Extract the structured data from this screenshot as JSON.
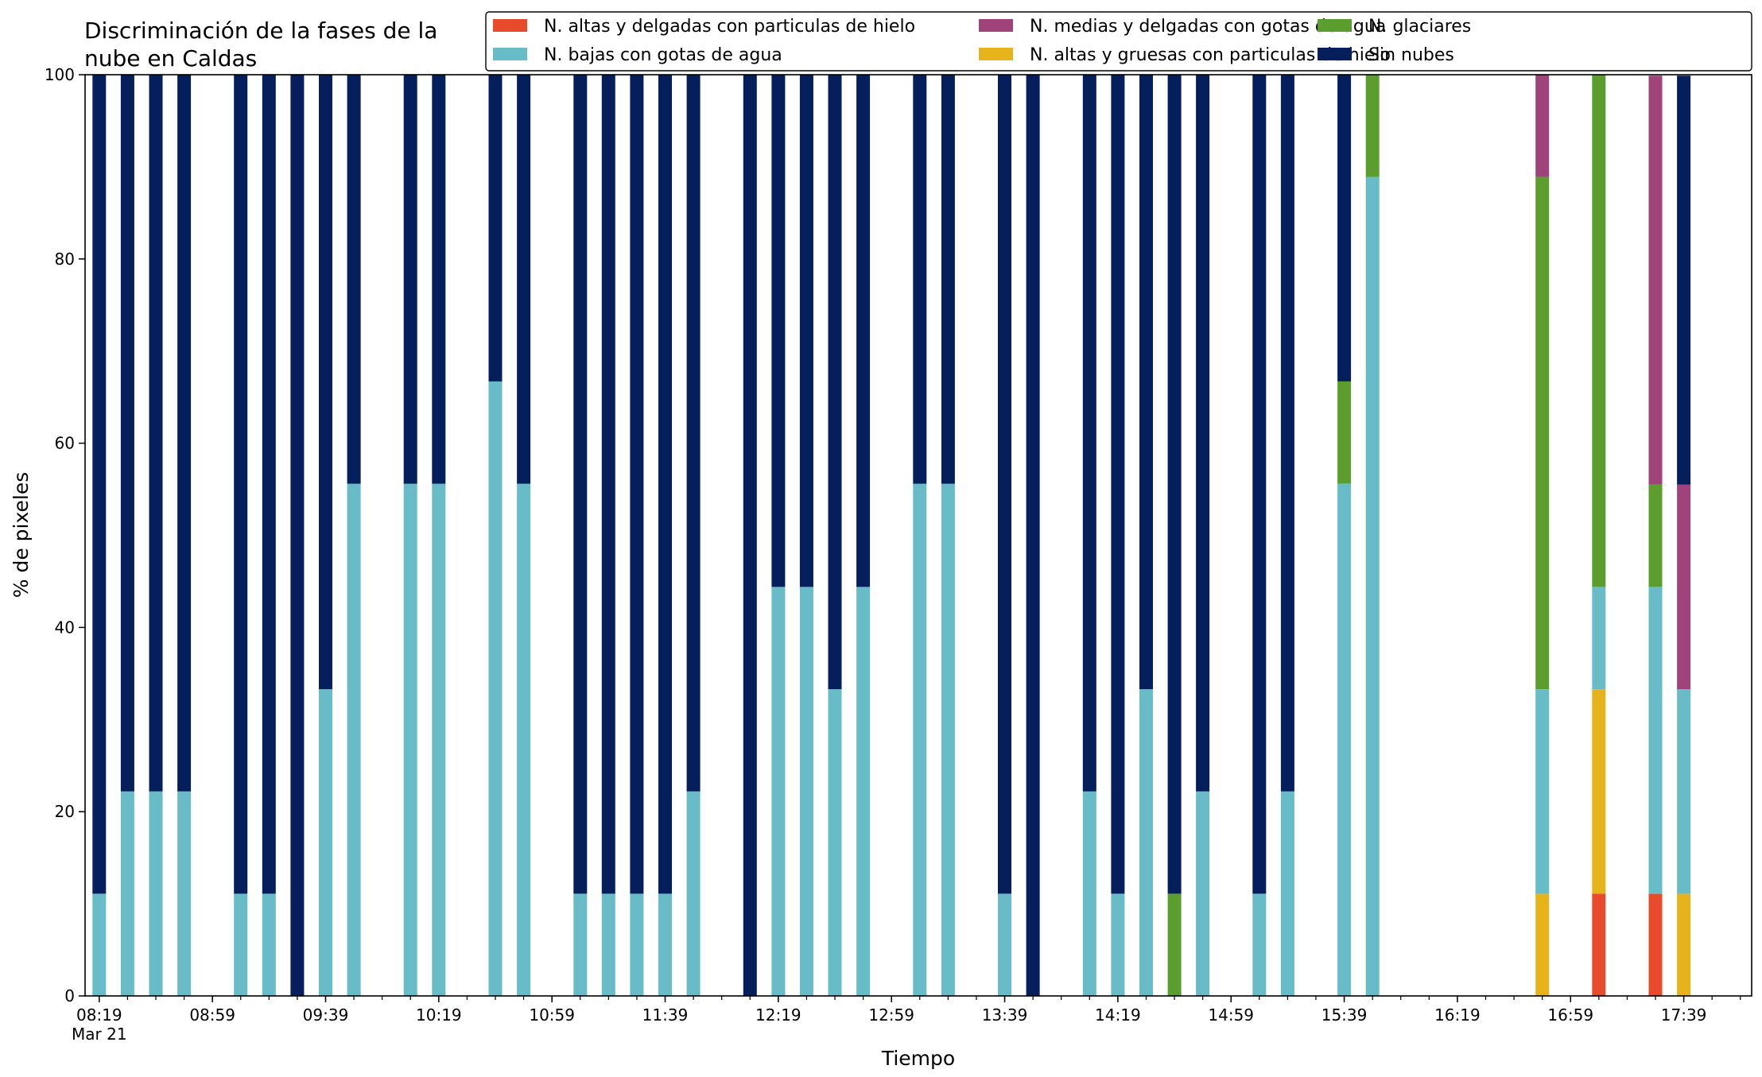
{
  "chart_data": {
    "type": "bar",
    "stacked": true,
    "title": "Discriminación de la fases de la\nnube en Caldas",
    "xlabel": "Tiempo",
    "ylabel": "% de pixeles",
    "ylim": [
      0,
      100
    ],
    "yticks": [
      0,
      20,
      40,
      60,
      80,
      100
    ],
    "xlim": [
      "08:14",
      "18:03"
    ],
    "x_tick_labels": [
      "08:19",
      "08:59",
      "09:39",
      "10:19",
      "10:59",
      "11:39",
      "12:19",
      "12:59",
      "13:39",
      "14:19",
      "14:59",
      "15:39",
      "16:19",
      "16:59",
      "17:39"
    ],
    "x_tick_sublabel": "Mar 21",
    "x_minor_tick_interval_minutes": 10,
    "grid": false,
    "legend_position": "top-right",
    "legend_columns": 3,
    "categories": [
      "08:19",
      "08:29",
      "08:39",
      "08:49",
      "09:09",
      "09:19",
      "09:29",
      "09:39",
      "09:49",
      "10:09",
      "10:19",
      "10:39",
      "10:49",
      "11:09",
      "11:19",
      "11:29",
      "11:39",
      "11:49",
      "12:09",
      "12:19",
      "12:29",
      "12:39",
      "12:49",
      "13:09",
      "13:19",
      "13:39",
      "13:49",
      "14:09",
      "14:19",
      "14:29",
      "14:39",
      "14:49",
      "15:09",
      "15:19",
      "15:39",
      "15:49",
      "16:49",
      "17:09",
      "17:29",
      "17:39"
    ],
    "series": [
      {
        "name": "N. altas y delgadas con particulas de hielo",
        "color": "#e84a2c",
        "values": [
          0,
          0,
          0,
          0,
          0,
          0,
          0,
          0,
          0,
          0,
          0,
          0,
          0,
          0,
          0,
          0,
          0,
          0,
          0,
          0,
          0,
          0,
          0,
          0,
          0,
          0,
          0,
          0,
          0,
          0,
          0,
          0,
          0,
          0,
          0,
          0,
          0,
          11.1,
          11.1,
          0
        ]
      },
      {
        "name": "N. altas y gruesas con particulas de hielo",
        "color": "#e6b41a",
        "values": [
          0,
          0,
          0,
          0,
          0,
          0,
          0,
          0,
          0,
          0,
          0,
          0,
          0,
          0,
          0,
          0,
          0,
          0,
          0,
          0,
          0,
          0,
          0,
          0,
          0,
          0,
          0,
          0,
          0,
          0,
          0,
          0,
          0,
          0,
          0,
          0,
          11.1,
          22.2,
          0,
          11.1
        ]
      },
      {
        "name": "N. bajas con gotas de agua",
        "color": "#67bcc8",
        "values": [
          11.1,
          22.2,
          22.2,
          22.2,
          11.1,
          11.1,
          0,
          33.3,
          55.6,
          55.6,
          55.6,
          66.7,
          55.6,
          11.1,
          11.1,
          11.1,
          11.1,
          22.2,
          0,
          44.4,
          44.4,
          33.3,
          44.4,
          55.6,
          55.6,
          11.1,
          0,
          22.2,
          11.1,
          33.3,
          0,
          22.2,
          11.1,
          22.2,
          55.6,
          88.9,
          22.2,
          11.1,
          33.3,
          22.2
        ]
      },
      {
        "name": "N. glaciares",
        "color": "#5b9e2e",
        "values": [
          0,
          0,
          0,
          0,
          0,
          0,
          0,
          0,
          0,
          0,
          0,
          0,
          0,
          0,
          0,
          0,
          0,
          0,
          0,
          0,
          0,
          0,
          0,
          0,
          0,
          0,
          0,
          0,
          0,
          0,
          11.1,
          0,
          0,
          0,
          11.1,
          11.1,
          55.6,
          55.6,
          11.1,
          0
        ]
      },
      {
        "name": "N. medias y delgadas con gotas de agua",
        "color": "#a0437a",
        "values": [
          0,
          0,
          0,
          0,
          0,
          0,
          0,
          0,
          0,
          0,
          0,
          0,
          0,
          0,
          0,
          0,
          0,
          0,
          0,
          0,
          0,
          0,
          0,
          0,
          0,
          0,
          0,
          0,
          0,
          0,
          0,
          0,
          0,
          0,
          0,
          0,
          11.1,
          0,
          44.4,
          22.2
        ]
      },
      {
        "name": "Sin nubes",
        "color": "#041f5c",
        "values": [
          88.9,
          77.8,
          77.8,
          77.8,
          88.9,
          88.9,
          100,
          66.7,
          44.4,
          44.4,
          44.4,
          33.3,
          44.4,
          88.9,
          88.9,
          88.9,
          88.9,
          77.8,
          100,
          55.6,
          55.6,
          66.7,
          55.6,
          44.4,
          44.4,
          88.9,
          100,
          77.8,
          88.9,
          66.7,
          88.9,
          77.8,
          88.9,
          77.8,
          33.3,
          0,
          0,
          0,
          0,
          44.4
        ]
      }
    ],
    "legend_order": [
      "N. altas y delgadas con particulas de hielo",
      "N. bajas con gotas de agua",
      "N. medias y delgadas con gotas de agua",
      "N. altas y gruesas con particulas de hielo",
      "N. glaciares",
      "Sin nubes"
    ]
  }
}
